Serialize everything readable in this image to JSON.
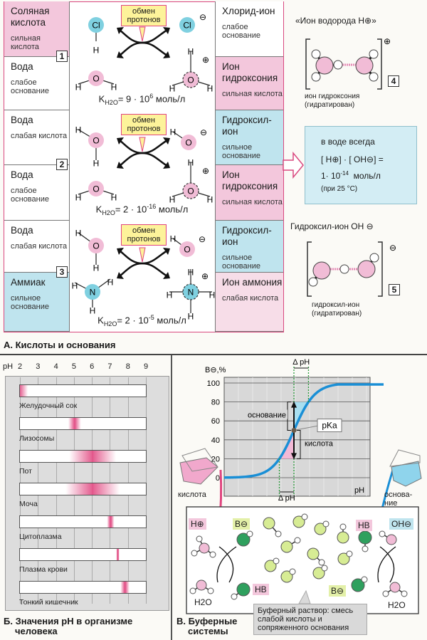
{
  "symbols": {
    "O": "O",
    "H": "H",
    "Cl": "Cl",
    "N": "N",
    "plus": "⊕",
    "minus": "⊖"
  },
  "section_a": {
    "title": "А. Кислоты и основания",
    "callout": "обмен протонов",
    "blocks": [
      {
        "number": "1",
        "left_top": {
          "name": "Соляная кислота",
          "role": "сильная кислота"
        },
        "left_bottom": {
          "name": "Вода",
          "role": "слабое основание"
        },
        "right_top": {
          "name": "Хлорид-ион",
          "role": "слабое основание"
        },
        "right_bottom": {
          "name": "Ион гидроксония",
          "role": "сильная кислота"
        },
        "k_prefix": "K",
        "k_sub": "H2O",
        "k_value": "= 9 · 10",
        "k_exp": "6",
        "k_unit": " моль/л"
      },
      {
        "number": "2",
        "left_top": {
          "name": "Вода",
          "role": "слабая кислота"
        },
        "left_bottom": {
          "name": "Вода",
          "role": "слабое основание"
        },
        "right_top": {
          "name": "Гидроксил-ион",
          "role": "сильное основание"
        },
        "right_bottom": {
          "name": "Ион гидроксония",
          "role": "сильная кислота"
        },
        "k_prefix": "K",
        "k_sub": "H2O",
        "k_value": "= 2 · 10",
        "k_exp": "-16",
        "k_unit": " моль/л"
      },
      {
        "number": "3",
        "left_top": {
          "name": "Вода",
          "role": "слабая кислота"
        },
        "left_bottom": {
          "name": "Аммиак",
          "role": "сильное основание"
        },
        "right_top": {
          "name": "Гидроксил-ион",
          "role": "сильное основание"
        },
        "right_bottom": {
          "name": "Ион аммония",
          "role": "слабая кислота"
        },
        "k_prefix": "K",
        "k_sub": "H2O",
        "k_value": "= 2 · 10",
        "k_exp": "-5",
        "k_unit": " моль/л"
      }
    ],
    "hydronium": {
      "title": "«Ион водорода H⊕»",
      "number": "4",
      "caption1": "ион гидроксония",
      "caption2": "(гидратирован)"
    },
    "ion_product": {
      "line1": "в воде всегда",
      "line2": "[ H⊕] · [ OH⊖] =",
      "line3_base": "1· 10",
      "line3_exp": "-14",
      "line3_unit": "  моль/л",
      "line4": "(при 25 °C)"
    },
    "hydroxyl": {
      "title": "Гидроксил-ион OH ⊖",
      "number": "5",
      "caption1": "гидроксил-ион",
      "caption2": "(гидратирован)"
    },
    "colors": {
      "acid": "#f3c7dc",
      "base": "#bfe4ee",
      "border": "#d9487f"
    }
  },
  "section_b": {
    "title_line1": "Б. Значения pH в организме",
    "title_line2": "человека",
    "chart_data": {
      "type": "range-bars",
      "axis_label": "pH",
      "ticks": [
        2,
        3,
        4,
        5,
        6,
        7,
        8,
        9
      ],
      "xlim": [
        2,
        9
      ],
      "grid": true,
      "color": "#e0457f",
      "rows": [
        {
          "label": "Желудочный сок",
          "center": 1.9,
          "spread": 0.5
        },
        {
          "label": "Лизосомы",
          "center": 5.0,
          "spread": 0.35
        },
        {
          "label": "Пот",
          "center": 6.0,
          "spread": 1.3
        },
        {
          "label": "Моча",
          "center": 6.0,
          "spread": 1.5
        },
        {
          "label": "Цитоплазма",
          "center": 7.0,
          "spread": 0.2
        },
        {
          "label": "Плазма крови",
          "center": 7.4,
          "spread": 0.08
        },
        {
          "label": "Тонкий кишечник",
          "center": 7.8,
          "spread": 0.25
        }
      ]
    }
  },
  "section_c": {
    "title_line1": "В. Буферные",
    "title_line2": "системы",
    "chart_data": {
      "type": "line",
      "ylabel": "B⊖,%",
      "xlabel": "pH",
      "yticks": [
        0,
        20,
        40,
        60,
        80,
        100
      ],
      "ylim": [
        0,
        100
      ],
      "grid": true,
      "curve_color": "#1a8fd6",
      "midpoint_label": "pKa",
      "midpoint_y": 50,
      "delta_label": "Δ pH",
      "base_bracket_label": "основание",
      "acid_bracket_label": "кислота",
      "shaded_ranges": [
        {
          "from": 50,
          "to": 80,
          "color": "#a9dff0"
        },
        {
          "from": 20,
          "to": 50,
          "color": "#f3b9d6"
        }
      ]
    },
    "acid_label": "кислота",
    "base_label": "основа-ние",
    "tags": {
      "h_plus": "H⊕",
      "b_minus": "B⊖",
      "hb": "HB",
      "oh_minus": "OH⊖",
      "h2o": "H2O"
    },
    "note": "Буферный раствор: смесь слабой кислоты и сопряженного основания"
  }
}
